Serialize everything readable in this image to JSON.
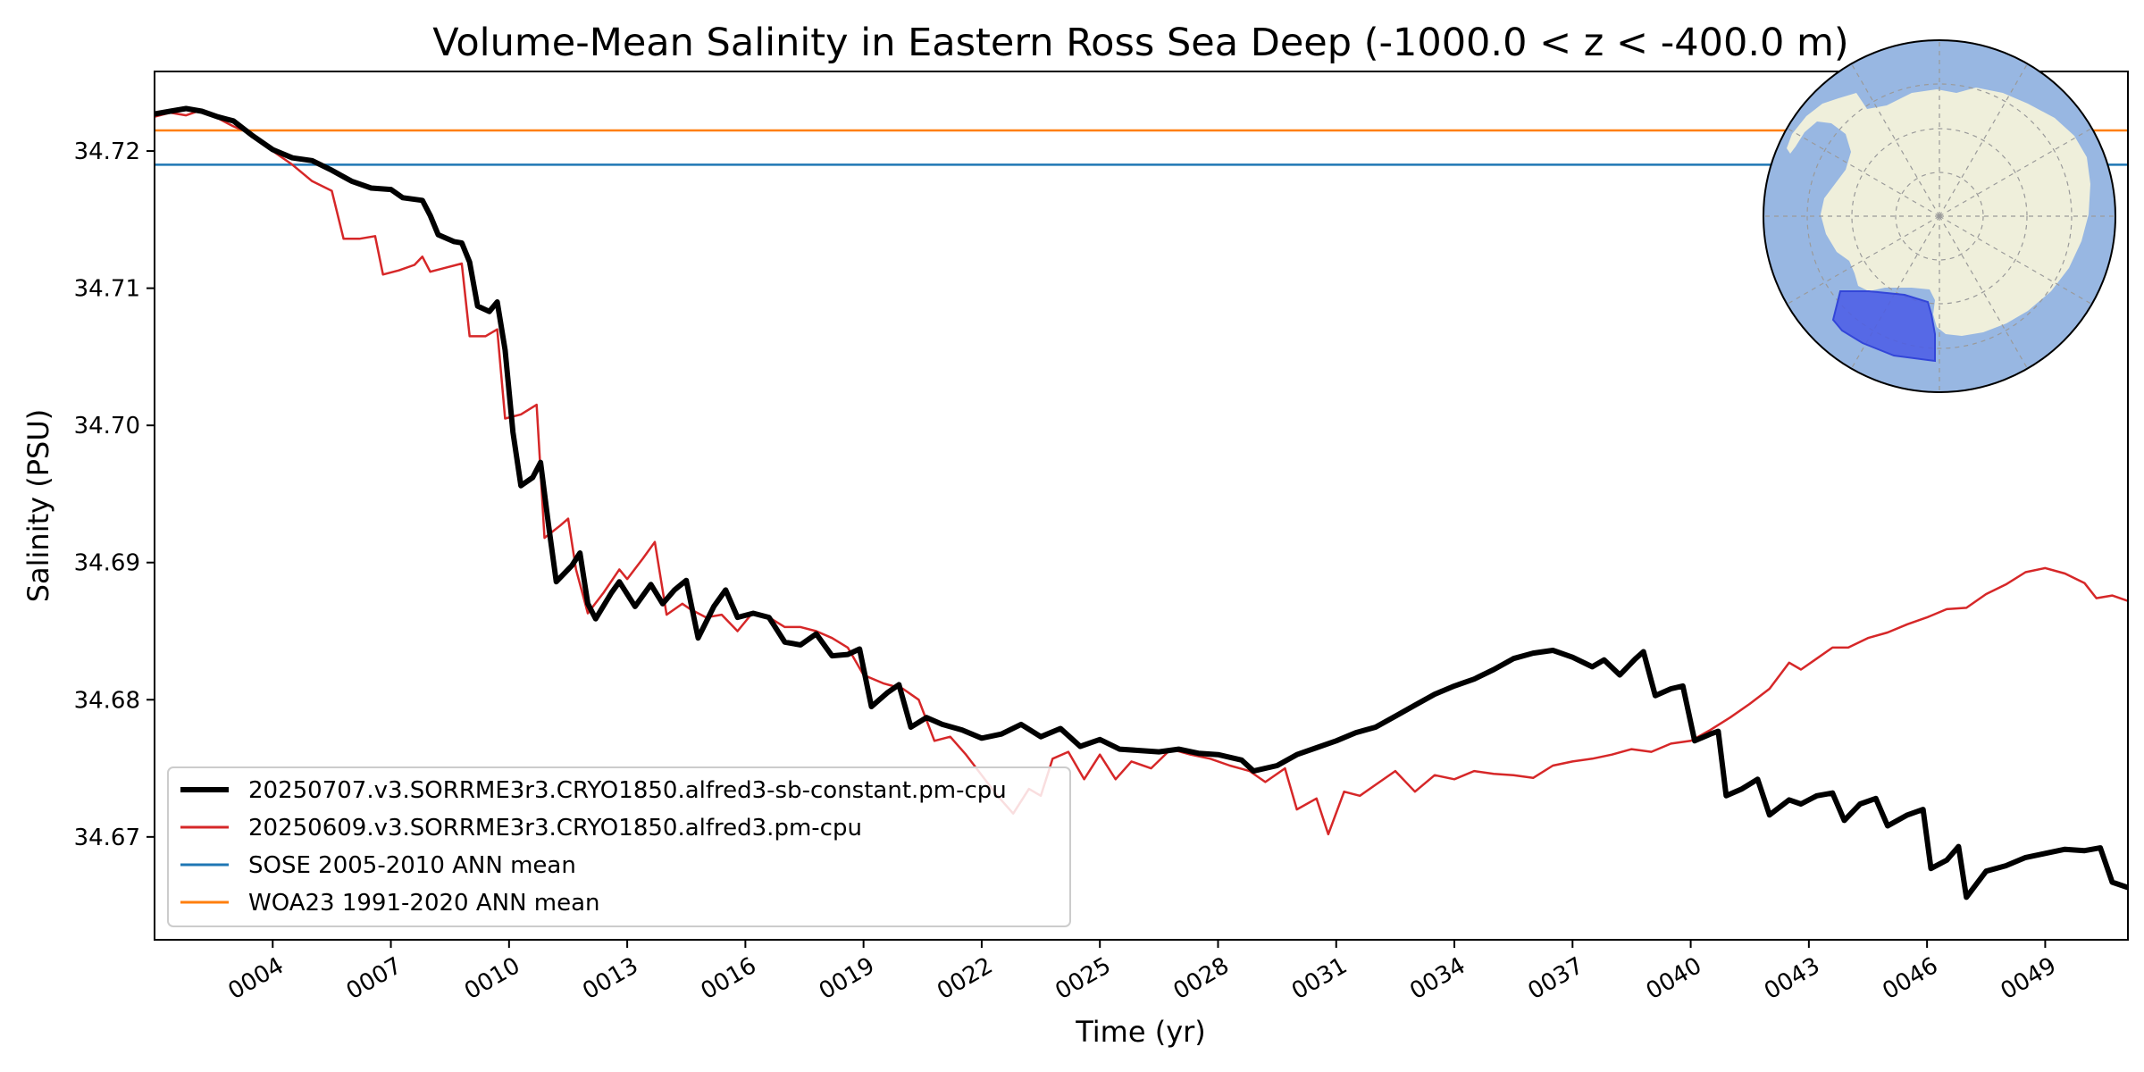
{
  "chart_data": {
    "type": "line",
    "title": "Volume-Mean Salinity in Eastern Ross Sea Deep (-1000.0 < z < -400.0 m)",
    "xlabel": "Time (yr)",
    "ylabel": "Salinity (PSU)",
    "xlim": [
      1,
      51.1
    ],
    "ylim": [
      34.6625,
      34.7258
    ],
    "x_ticks": [
      {
        "value": 4,
        "label": "0004"
      },
      {
        "value": 7,
        "label": "0007"
      },
      {
        "value": 10,
        "label": "0010"
      },
      {
        "value": 13,
        "label": "0013"
      },
      {
        "value": 16,
        "label": "0016"
      },
      {
        "value": 19,
        "label": "0019"
      },
      {
        "value": 22,
        "label": "0022"
      },
      {
        "value": 25,
        "label": "0025"
      },
      {
        "value": 28,
        "label": "0028"
      },
      {
        "value": 31,
        "label": "0031"
      },
      {
        "value": 34,
        "label": "0034"
      },
      {
        "value": 37,
        "label": "0037"
      },
      {
        "value": 40,
        "label": "0040"
      },
      {
        "value": 43,
        "label": "0043"
      },
      {
        "value": 46,
        "label": "0046"
      },
      {
        "value": 49,
        "label": "0049"
      }
    ],
    "y_ticks": [
      {
        "value": 34.67,
        "label": "34.67"
      },
      {
        "value": 34.68,
        "label": "34.68"
      },
      {
        "value": 34.69,
        "label": "34.69"
      },
      {
        "value": 34.7,
        "label": "34.70"
      },
      {
        "value": 34.71,
        "label": "34.71"
      },
      {
        "value": 34.72,
        "label": "34.72"
      }
    ],
    "legend_position": "lower-left",
    "series": [
      {
        "name": "20250707.v3.SORRME3r3.CRYO1850.alfred3-sb-constant.pm-cpu",
        "color": "#000000",
        "style": "thick",
        "points": [
          [
            1.0,
            34.7227
          ],
          [
            1.4,
            34.7229
          ],
          [
            1.8,
            34.7231
          ],
          [
            2.2,
            34.7229
          ],
          [
            2.6,
            34.7225
          ],
          [
            3.0,
            34.7222
          ],
          [
            3.5,
            34.7211
          ],
          [
            4.0,
            34.7201
          ],
          [
            4.5,
            34.7195
          ],
          [
            5.0,
            34.7193
          ],
          [
            5.5,
            34.7186
          ],
          [
            6.0,
            34.7178
          ],
          [
            6.5,
            34.7173
          ],
          [
            7.0,
            34.7172
          ],
          [
            7.3,
            34.7166
          ],
          [
            7.8,
            34.7164
          ],
          [
            8.0,
            34.7153
          ],
          [
            8.2,
            34.7139
          ],
          [
            8.6,
            34.7134
          ],
          [
            8.8,
            34.7133
          ],
          [
            9.0,
            34.7119
          ],
          [
            9.2,
            34.7087
          ],
          [
            9.5,
            34.7083
          ],
          [
            9.7,
            34.709
          ],
          [
            9.9,
            34.7055
          ],
          [
            10.1,
            34.6995
          ],
          [
            10.3,
            34.6956
          ],
          [
            10.6,
            34.6962
          ],
          [
            10.8,
            34.6973
          ],
          [
            11.0,
            34.6928
          ],
          [
            11.2,
            34.6886
          ],
          [
            11.6,
            34.6898
          ],
          [
            11.8,
            34.6907
          ],
          [
            12.0,
            34.687
          ],
          [
            12.2,
            34.6859
          ],
          [
            12.6,
            34.6878
          ],
          [
            12.8,
            34.6886
          ],
          [
            13.2,
            34.6868
          ],
          [
            13.6,
            34.6884
          ],
          [
            13.9,
            34.687
          ],
          [
            14.2,
            34.688
          ],
          [
            14.5,
            34.6887
          ],
          [
            14.8,
            34.6845
          ],
          [
            15.2,
            34.6868
          ],
          [
            15.5,
            34.688
          ],
          [
            15.8,
            34.686
          ],
          [
            16.2,
            34.6863
          ],
          [
            16.6,
            34.686
          ],
          [
            17.0,
            34.6842
          ],
          [
            17.4,
            34.684
          ],
          [
            17.8,
            34.6848
          ],
          [
            18.2,
            34.6832
          ],
          [
            18.6,
            34.6833
          ],
          [
            18.9,
            34.6837
          ],
          [
            19.2,
            34.6795
          ],
          [
            19.6,
            34.6805
          ],
          [
            19.9,
            34.6811
          ],
          [
            20.2,
            34.678
          ],
          [
            20.6,
            34.6787
          ],
          [
            21.0,
            34.6782
          ],
          [
            21.5,
            34.6778
          ],
          [
            22.0,
            34.6772
          ],
          [
            22.5,
            34.6775
          ],
          [
            23.0,
            34.6782
          ],
          [
            23.5,
            34.6773
          ],
          [
            24.0,
            34.6779
          ],
          [
            24.5,
            34.6766
          ],
          [
            25.0,
            34.6771
          ],
          [
            25.5,
            34.6764
          ],
          [
            26.0,
            34.6763
          ],
          [
            26.5,
            34.6762
          ],
          [
            27.0,
            34.6764
          ],
          [
            27.5,
            34.6761
          ],
          [
            28.0,
            34.676
          ],
          [
            28.6,
            34.6756
          ],
          [
            28.9,
            34.6748
          ],
          [
            29.5,
            34.6752
          ],
          [
            30.0,
            34.676
          ],
          [
            30.5,
            34.6765
          ],
          [
            31.0,
            34.677
          ],
          [
            31.5,
            34.6776
          ],
          [
            32.0,
            34.678
          ],
          [
            32.5,
            34.6788
          ],
          [
            33.0,
            34.6796
          ],
          [
            33.5,
            34.6804
          ],
          [
            34.0,
            34.681
          ],
          [
            34.5,
            34.6815
          ],
          [
            35.0,
            34.6822
          ],
          [
            35.5,
            34.683
          ],
          [
            36.0,
            34.6834
          ],
          [
            36.5,
            34.6836
          ],
          [
            37.0,
            34.6831
          ],
          [
            37.5,
            34.6824
          ],
          [
            37.8,
            34.6829
          ],
          [
            38.2,
            34.6818
          ],
          [
            38.6,
            34.683
          ],
          [
            38.8,
            34.6835
          ],
          [
            39.1,
            34.6803
          ],
          [
            39.5,
            34.6808
          ],
          [
            39.8,
            34.681
          ],
          [
            40.1,
            34.677
          ],
          [
            40.5,
            34.6775
          ],
          [
            40.7,
            34.6777
          ],
          [
            40.9,
            34.673
          ],
          [
            41.3,
            34.6735
          ],
          [
            41.7,
            34.6742
          ],
          [
            42.0,
            34.6716
          ],
          [
            42.5,
            34.6727
          ],
          [
            42.8,
            34.6724
          ],
          [
            43.2,
            34.673
          ],
          [
            43.6,
            34.6732
          ],
          [
            43.9,
            34.6712
          ],
          [
            44.3,
            34.6724
          ],
          [
            44.7,
            34.6728
          ],
          [
            45.0,
            34.6708
          ],
          [
            45.5,
            34.6716
          ],
          [
            45.9,
            34.672
          ],
          [
            46.1,
            34.6677
          ],
          [
            46.5,
            34.6683
          ],
          [
            46.8,
            34.6693
          ],
          [
            47.0,
            34.6656
          ],
          [
            47.5,
            34.6675
          ],
          [
            48.0,
            34.6679
          ],
          [
            48.5,
            34.6685
          ],
          [
            49.0,
            34.6688
          ],
          [
            49.5,
            34.6691
          ],
          [
            50.0,
            34.669
          ],
          [
            50.4,
            34.6692
          ],
          [
            50.7,
            34.6667
          ],
          [
            51.1,
            34.6663
          ]
        ]
      },
      {
        "name": "20250609.v3.SORRME3r3.CRYO1850.alfred3.pm-cpu",
        "color": "#d62728",
        "style": "thin",
        "points": [
          [
            1.0,
            34.7225
          ],
          [
            1.4,
            34.7228
          ],
          [
            1.8,
            34.7226
          ],
          [
            2.2,
            34.723
          ],
          [
            2.6,
            34.7224
          ],
          [
            3.0,
            34.7218
          ],
          [
            3.5,
            34.7212
          ],
          [
            4.0,
            34.72
          ],
          [
            4.5,
            34.719
          ],
          [
            5.0,
            34.7178
          ],
          [
            5.5,
            34.7171
          ],
          [
            5.8,
            34.7136
          ],
          [
            6.2,
            34.7136
          ],
          [
            6.6,
            34.7138
          ],
          [
            6.8,
            34.711
          ],
          [
            7.2,
            34.7113
          ],
          [
            7.6,
            34.7117
          ],
          [
            7.8,
            34.7123
          ],
          [
            8.0,
            34.7112
          ],
          [
            8.4,
            34.7115
          ],
          [
            8.8,
            34.7118
          ],
          [
            9.0,
            34.7065
          ],
          [
            9.4,
            34.7065
          ],
          [
            9.7,
            34.707
          ],
          [
            9.9,
            34.7005
          ],
          [
            10.3,
            34.7008
          ],
          [
            10.7,
            34.7015
          ],
          [
            10.9,
            34.6918
          ],
          [
            11.3,
            34.6927
          ],
          [
            11.5,
            34.6932
          ],
          [
            11.7,
            34.6895
          ],
          [
            12.0,
            34.6863
          ],
          [
            12.4,
            34.6878
          ],
          [
            12.8,
            34.6895
          ],
          [
            13.0,
            34.6888
          ],
          [
            13.4,
            34.6903
          ],
          [
            13.7,
            34.6915
          ],
          [
            14.0,
            34.6862
          ],
          [
            14.4,
            34.687
          ],
          [
            14.6,
            34.6866
          ],
          [
            15.0,
            34.686
          ],
          [
            15.4,
            34.6862
          ],
          [
            15.8,
            34.685
          ],
          [
            16.2,
            34.6864
          ],
          [
            16.6,
            34.686
          ],
          [
            17.0,
            34.6853
          ],
          [
            17.4,
            34.6853
          ],
          [
            17.8,
            34.685
          ],
          [
            18.2,
            34.6845
          ],
          [
            18.6,
            34.6838
          ],
          [
            19.0,
            34.6818
          ],
          [
            19.5,
            34.6812
          ],
          [
            20.0,
            34.6808
          ],
          [
            20.4,
            34.68
          ],
          [
            20.8,
            34.677
          ],
          [
            21.2,
            34.6773
          ],
          [
            21.6,
            34.676
          ],
          [
            22.0,
            34.6745
          ],
          [
            22.4,
            34.673
          ],
          [
            22.8,
            34.6717
          ],
          [
            23.2,
            34.6735
          ],
          [
            23.5,
            34.673
          ],
          [
            23.8,
            34.6757
          ],
          [
            24.2,
            34.6762
          ],
          [
            24.6,
            34.6742
          ],
          [
            25.0,
            34.676
          ],
          [
            25.4,
            34.6742
          ],
          [
            25.8,
            34.6755
          ],
          [
            26.3,
            34.675
          ],
          [
            26.8,
            34.6764
          ],
          [
            27.3,
            34.676
          ],
          [
            27.8,
            34.6757
          ],
          [
            28.3,
            34.6752
          ],
          [
            28.8,
            34.6748
          ],
          [
            29.2,
            34.674
          ],
          [
            29.7,
            34.675
          ],
          [
            30.0,
            34.672
          ],
          [
            30.5,
            34.6728
          ],
          [
            30.8,
            34.6702
          ],
          [
            31.2,
            34.6733
          ],
          [
            31.6,
            34.673
          ],
          [
            32.0,
            34.6738
          ],
          [
            32.5,
            34.6748
          ],
          [
            33.0,
            34.6733
          ],
          [
            33.5,
            34.6745
          ],
          [
            34.0,
            34.6742
          ],
          [
            34.5,
            34.6748
          ],
          [
            35.0,
            34.6746
          ],
          [
            35.5,
            34.6745
          ],
          [
            36.0,
            34.6743
          ],
          [
            36.5,
            34.6752
          ],
          [
            37.0,
            34.6755
          ],
          [
            37.5,
            34.6757
          ],
          [
            38.0,
            34.676
          ],
          [
            38.5,
            34.6764
          ],
          [
            39.0,
            34.6762
          ],
          [
            39.5,
            34.6768
          ],
          [
            40.0,
            34.677
          ],
          [
            40.5,
            34.6778
          ],
          [
            41.0,
            34.6787
          ],
          [
            41.5,
            34.6797
          ],
          [
            42.0,
            34.6808
          ],
          [
            42.5,
            34.6827
          ],
          [
            42.8,
            34.6822
          ],
          [
            43.2,
            34.683
          ],
          [
            43.6,
            34.6838
          ],
          [
            44.0,
            34.6838
          ],
          [
            44.5,
            34.6845
          ],
          [
            45.0,
            34.6849
          ],
          [
            45.5,
            34.6855
          ],
          [
            46.0,
            34.686
          ],
          [
            46.5,
            34.6866
          ],
          [
            47.0,
            34.6867
          ],
          [
            47.5,
            34.6877
          ],
          [
            48.0,
            34.6884
          ],
          [
            48.5,
            34.6893
          ],
          [
            49.0,
            34.6896
          ],
          [
            49.5,
            34.6892
          ],
          [
            50.0,
            34.6885
          ],
          [
            50.3,
            34.6874
          ],
          [
            50.7,
            34.6876
          ],
          [
            51.1,
            34.6872
          ]
        ]
      },
      {
        "name": "SOSE 2005-2010 ANN mean",
        "color": "#1f77b4",
        "style": "hline",
        "value": 34.719
      },
      {
        "name": "WOA23 1991-2020 ANN mean",
        "color": "#ff7f0e",
        "style": "hline",
        "value": 34.7215
      }
    ]
  },
  "inset_map": {
    "icon": "antarctica-region-map",
    "ocean_color": "#98b7e2",
    "land_color": "#efefdb",
    "region_color": "#4a5ce6"
  }
}
